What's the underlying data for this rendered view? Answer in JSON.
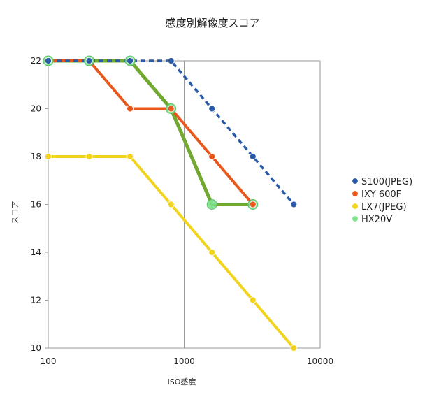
{
  "chart_data": {
    "type": "line",
    "title": "感度別解像度スコア",
    "xlabel": "ISO感度",
    "ylabel": "スコア",
    "x_scale": "log",
    "xlim": [
      100,
      10000
    ],
    "ylim": [
      10,
      22
    ],
    "x_ticks": [
      "100",
      "1000",
      "10000"
    ],
    "y_ticks": [
      "10",
      "12",
      "14",
      "16",
      "18",
      "20",
      "22"
    ],
    "grid": "vertical",
    "legend_position": "right",
    "series": [
      {
        "name": "S100(JPEG)",
        "color": "#2a5aa8",
        "style": "dashed",
        "x": [
          100,
          200,
          400,
          800,
          1600,
          3200,
          6400
        ],
        "y": [
          22,
          22,
          22,
          22,
          20,
          18,
          16
        ]
      },
      {
        "name": "IXY 600F",
        "color": "#e8581c",
        "style": "solid",
        "x": [
          100,
          200,
          400,
          800,
          1600,
          3200
        ],
        "y": [
          22,
          22,
          20,
          20,
          18,
          16
        ]
      },
      {
        "name": "LX7(JPEG)",
        "color": "#f2d41c",
        "style": "solid",
        "x": [
          100,
          200,
          400,
          800,
          1600,
          3200,
          6400
        ],
        "y": [
          18,
          18,
          18,
          16,
          14,
          12,
          10
        ]
      },
      {
        "name": "HX20V",
        "color": "#70a830",
        "marker_color": "#7ee08a",
        "style": "solid",
        "x": [
          100,
          200,
          400,
          800,
          1600,
          3200
        ],
        "y": [
          22,
          22,
          22,
          20,
          16,
          16
        ]
      }
    ]
  }
}
